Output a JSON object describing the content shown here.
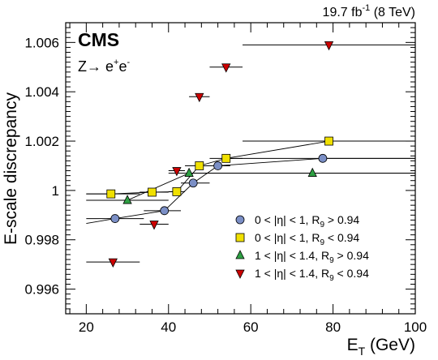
{
  "chart_data": {
    "type": "scatter",
    "lumi_label": "19.7 fb",
    "lumi_unit_sup": "-1",
    "lumi_energy": "(8 TeV)",
    "experiment": "CMS",
    "process": {
      "base": "Z→ e",
      "sup1": "+",
      "mid": "e",
      "sup2": "-"
    },
    "xlabel": {
      "main": "E",
      "sub": "T",
      "unit": "(GeV)"
    },
    "ylabel": "E-scale discrepancy",
    "xlim": [
      15,
      100
    ],
    "ylim": [
      0.995,
      1.0068
    ],
    "xticks": [
      20,
      40,
      60,
      80,
      100
    ],
    "yticks": [
      0.996,
      0.998,
      1,
      1.002,
      1.004,
      1.006
    ],
    "ytick_labels": [
      "0.996",
      "0.998",
      "1",
      "1.002",
      "1.004",
      "1.006"
    ],
    "series": [
      {
        "legend_main": "0 < |η| < 1, R",
        "legend_sub": "9",
        "legend_tail": " > 0.94",
        "marker": "circle",
        "color": "#7b8fc6",
        "points": [
          {
            "x": 27,
            "xlo": 20,
            "xhi": 34,
            "y": 0.99886
          },
          {
            "x": 39,
            "xlo": 34,
            "xhi": 43,
            "y": 0.99918
          },
          {
            "x": 46,
            "xlo": 43,
            "xhi": 50,
            "y": 1.0003
          },
          {
            "x": 52,
            "xlo": 50,
            "xhi": 55,
            "y": 1.001
          },
          {
            "x": 77.5,
            "xlo": 55,
            "xhi": 100,
            "y": 1.0013
          }
        ]
      },
      {
        "legend_main": "0 < |η| < 1, R",
        "legend_sub": "9",
        "legend_tail": " < 0.94",
        "marker": "square",
        "color": "#f0e000",
        "points": [
          {
            "x": 26,
            "xlo": 20,
            "xhi": 33,
            "y": 0.99986
          },
          {
            "x": 36,
            "xlo": 33,
            "xhi": 40,
            "y": 0.99993
          },
          {
            "x": 42,
            "xlo": 40,
            "xhi": 44,
            "y": 0.99995
          },
          {
            "x": 47.5,
            "xlo": 44,
            "xhi": 50,
            "y": 1.001
          },
          {
            "x": 54,
            "xlo": 50,
            "xhi": 58,
            "y": 1.0013
          },
          {
            "x": 79,
            "xlo": 58,
            "xhi": 100,
            "y": 1.002
          }
        ]
      },
      {
        "legend_main": "1 < |η| < 1.4, R",
        "legend_sub": "9",
        "legend_tail": " > 0.94",
        "marker": "triangle-up",
        "color": "#2ea043",
        "points": [
          {
            "x": 30,
            "xlo": 20,
            "xhi": 40,
            "y": 0.9996
          },
          {
            "x": 45,
            "xlo": 40,
            "xhi": 50,
            "y": 1.0007
          },
          {
            "x": 75,
            "xlo": 50,
            "xhi": 100,
            "y": 1.0007
          }
        ]
      },
      {
        "legend_main": "1 < |η| < 1.4, R",
        "legend_sub": "9",
        "legend_tail": " < 0.94",
        "marker": "triangle-down",
        "color": "#cc0000",
        "points": [
          {
            "x": 26.5,
            "xlo": 20,
            "xhi": 33,
            "y": 0.9971
          },
          {
            "x": 36.5,
            "xlo": 33,
            "xhi": 40,
            "y": 0.99863
          },
          {
            "x": 42,
            "xlo": 40,
            "xhi": 44,
            "y": 1.0008
          },
          {
            "x": 47.5,
            "xlo": 45,
            "xhi": 50,
            "y": 1.0038
          },
          {
            "x": 54,
            "xlo": 50,
            "xhi": 58,
            "y": 1.005
          },
          {
            "x": 79,
            "xlo": 58,
            "xhi": 100,
            "y": 1.0059
          }
        ]
      }
    ]
  }
}
